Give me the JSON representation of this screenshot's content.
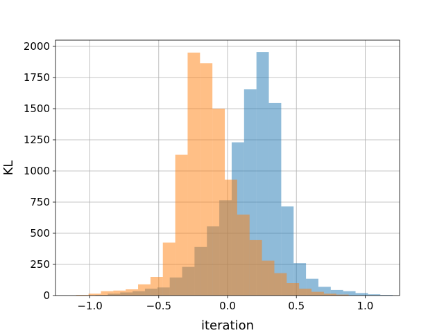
{
  "chart_data": {
    "type": "histogram",
    "title": "",
    "xlabel": "iteration",
    "ylabel": "KL",
    "xlim": [
      -1.25,
      1.25
    ],
    "ylim": [
      0,
      2050
    ],
    "xticks": [
      -1.0,
      -0.5,
      0.0,
      0.5,
      1.0
    ],
    "xtick_labels": [
      "−1.0",
      "−0.5",
      "0.0",
      "0.5",
      "1.0"
    ],
    "yticks": [
      0,
      250,
      500,
      750,
      1000,
      1250,
      1500,
      1750,
      2000
    ],
    "ytick_labels": [
      "0",
      "250",
      "500",
      "750",
      "1000",
      "1250",
      "1500",
      "1750",
      "2000"
    ],
    "grid": true,
    "series": [
      {
        "color": "#1f77b4",
        "opacity": 0.5,
        "bin_edges": [
          -0.96,
          -0.87,
          -0.78,
          -0.69,
          -0.6,
          -0.51,
          -0.42,
          -0.33,
          -0.24,
          -0.15,
          -0.06,
          0.03,
          0.12,
          0.21,
          0.3,
          0.39,
          0.48,
          0.57,
          0.66,
          0.75,
          0.84,
          0.93,
          1.02,
          1.11,
          1.2
        ],
        "counts": [
          5,
          15,
          25,
          35,
          55,
          65,
          145,
          230,
          390,
          555,
          765,
          1230,
          1655,
          1955,
          1545,
          715,
          260,
          135,
          70,
          45,
          35,
          20,
          10,
          5
        ]
      },
      {
        "color": "#ff7f0e",
        "opacity": 0.5,
        "bin_edges": [
          -1.1,
          -1.01,
          -0.92,
          -0.83,
          -0.74,
          -0.65,
          -0.56,
          -0.47,
          -0.38,
          -0.29,
          -0.2,
          -0.11,
          -0.02,
          0.07,
          0.16,
          0.25,
          0.34,
          0.43,
          0.52,
          0.61,
          0.7,
          0.79,
          0.88
        ],
        "counts": [
          5,
          15,
          35,
          40,
          50,
          90,
          150,
          425,
          1130,
          1950,
          1865,
          1500,
          930,
          650,
          445,
          280,
          180,
          100,
          55,
          30,
          15,
          8
        ]
      }
    ]
  }
}
